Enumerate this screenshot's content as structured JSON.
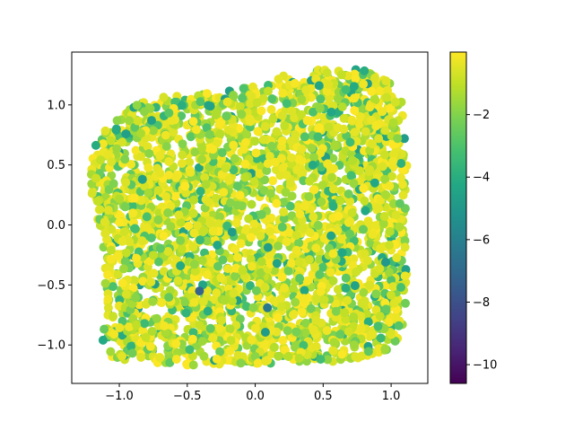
{
  "chart_data": {
    "type": "scatter",
    "title": "",
    "xlabel": "",
    "ylabel": "",
    "xlim": [
      -1.35,
      1.27
    ],
    "ylim": [
      -1.32,
      1.44
    ],
    "x_ticks": [
      -1.0,
      -0.5,
      0.0,
      0.5,
      1.0
    ],
    "x_tick_labels": [
      "−1.0",
      "−0.5",
      "0.0",
      "0.5",
      "1.0"
    ],
    "y_ticks": [
      -1.0,
      -0.5,
      0.0,
      0.5,
      1.0
    ],
    "y_tick_labels": [
      "−1.0",
      "−0.5",
      "0.0",
      "0.5",
      "1.0"
    ],
    "grid": false,
    "colormap": "viridis",
    "colorbar": {
      "min": -10.6,
      "max": 0,
      "ticks": [
        -10,
        -8,
        -6,
        -4,
        -2
      ],
      "tick_labels": [
        "−10",
        "−8",
        "−6",
        "−4",
        "−2"
      ]
    },
    "marker_color_note": "most points near 0 (yellow), many around -1 to -3 (light green), few around -4 to -5 (teal)",
    "outliers": [
      {
        "x": -0.41,
        "y": -0.55,
        "value": -7.2
      },
      {
        "x": 0.09,
        "y": -0.69,
        "value": -6.3
      },
      {
        "x": -0.17,
        "y": -0.06,
        "value": -4.8
      },
      {
        "x": -0.83,
        "y": 0.38,
        "value": -4.6
      },
      {
        "x": 0.16,
        "y": -0.32,
        "value": -4.5
      },
      {
        "x": 0.96,
        "y": -0.31,
        "value": -5.0
      },
      {
        "x": 0.88,
        "y": 0.35,
        "value": -4.3
      },
      {
        "x": 0.47,
        "y": 1.16,
        "value": -4.4
      },
      {
        "x": -0.33,
        "y": 0.99,
        "value": -4.5
      },
      {
        "x": -1.12,
        "y": -0.96,
        "value": -4.2
      },
      {
        "x": 0.64,
        "y": -0.23,
        "value": -4.3
      },
      {
        "x": -0.55,
        "y": -0.34,
        "value": -4.2
      }
    ],
    "point_count": 3200,
    "region_boundary": [
      [
        -1.06,
        0.87
      ],
      [
        -0.94,
        0.98
      ],
      [
        -0.7,
        1.07
      ],
      [
        -0.3,
        1.1
      ],
      [
        0.05,
        1.17
      ],
      [
        0.26,
        1.27
      ],
      [
        0.55,
        1.31
      ],
      [
        0.8,
        1.29
      ],
      [
        0.98,
        1.22
      ],
      [
        1.08,
        1.05
      ],
      [
        1.1,
        0.8
      ],
      [
        1.12,
        0.5
      ],
      [
        1.11,
        0.1
      ],
      [
        1.12,
        -0.2
      ],
      [
        1.11,
        -0.6
      ],
      [
        1.08,
        -0.92
      ],
      [
        0.95,
        -1.08
      ],
      [
        0.55,
        -1.14
      ],
      [
        0.0,
        -1.16
      ],
      [
        -0.6,
        -1.17
      ],
      [
        -1.05,
        -1.11
      ],
      [
        -1.12,
        -0.9
      ],
      [
        -1.1,
        -0.55
      ],
      [
        -1.12,
        -0.15
      ],
      [
        -1.16,
        0.06
      ],
      [
        -1.22,
        0.3
      ],
      [
        -1.21,
        0.55
      ],
      [
        -1.15,
        0.75
      ]
    ],
    "sparse_region": {
      "center": [
        0.12,
        0.04
      ],
      "rx": 0.28,
      "ry": 0.32
    }
  }
}
